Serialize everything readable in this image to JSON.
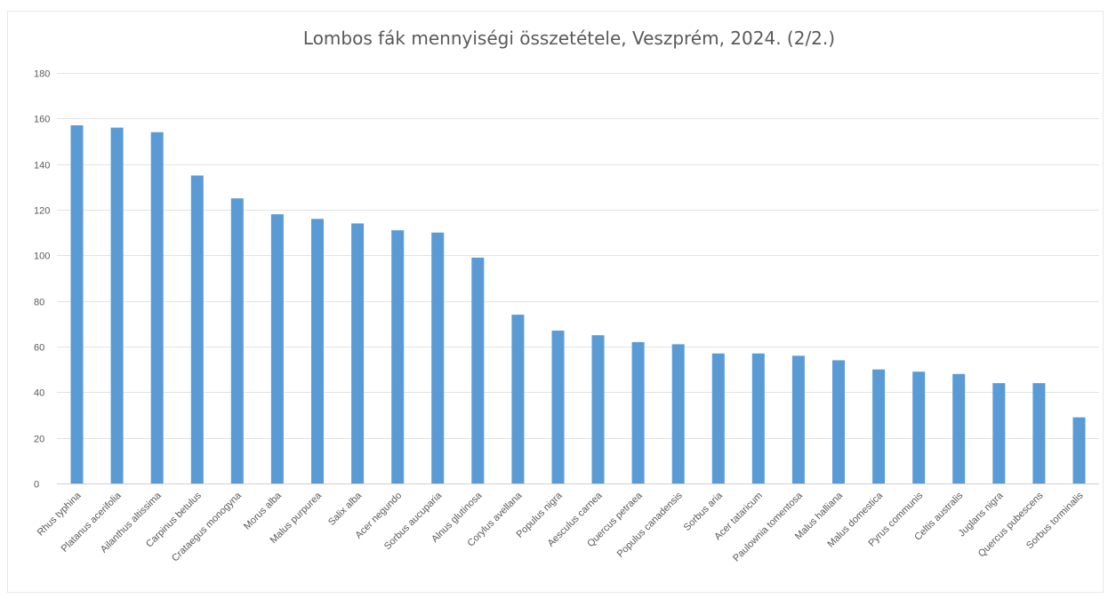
{
  "chart_data": {
    "type": "bar",
    "title": "Lombos fák mennyiségi összetétele, Veszprém, 2024. (2/2.)",
    "xlabel": "",
    "ylabel": "",
    "ylim": [
      0,
      180
    ],
    "yticks": [
      0,
      20,
      40,
      60,
      80,
      100,
      120,
      140,
      160,
      180
    ],
    "grid": true,
    "legend": "none",
    "bar_color": "#5b9bd5",
    "categories": [
      "Rhus typhina",
      "Platanus acerifolia",
      "Ailanthus altissima",
      "Carpinus betulus",
      "Crataegus monogyna",
      "Morus alba",
      "Malus purpurea",
      "Salix alba",
      "Acer negundo",
      "Sorbus aucuparia",
      "Alnus glutinosa",
      "Corylus avellana",
      "Populus nigra",
      "Aesculus carnea",
      "Quercus petraea",
      "Populus canadensis",
      "Sorbus aria",
      "Acer tataricum",
      "Paulownia tomentosa",
      "Malus halliana",
      "Malus domestica",
      "Pyrus communis",
      "Celtis australis",
      "Juglans nigra",
      "Quercus pubescens",
      "Sorbus torminalis"
    ],
    "values": [
      157,
      156,
      154,
      135,
      125,
      118,
      116,
      114,
      111,
      110,
      99,
      74,
      67,
      65,
      62,
      61,
      57,
      57,
      56,
      54,
      50,
      49,
      48,
      44,
      44,
      29
    ]
  }
}
